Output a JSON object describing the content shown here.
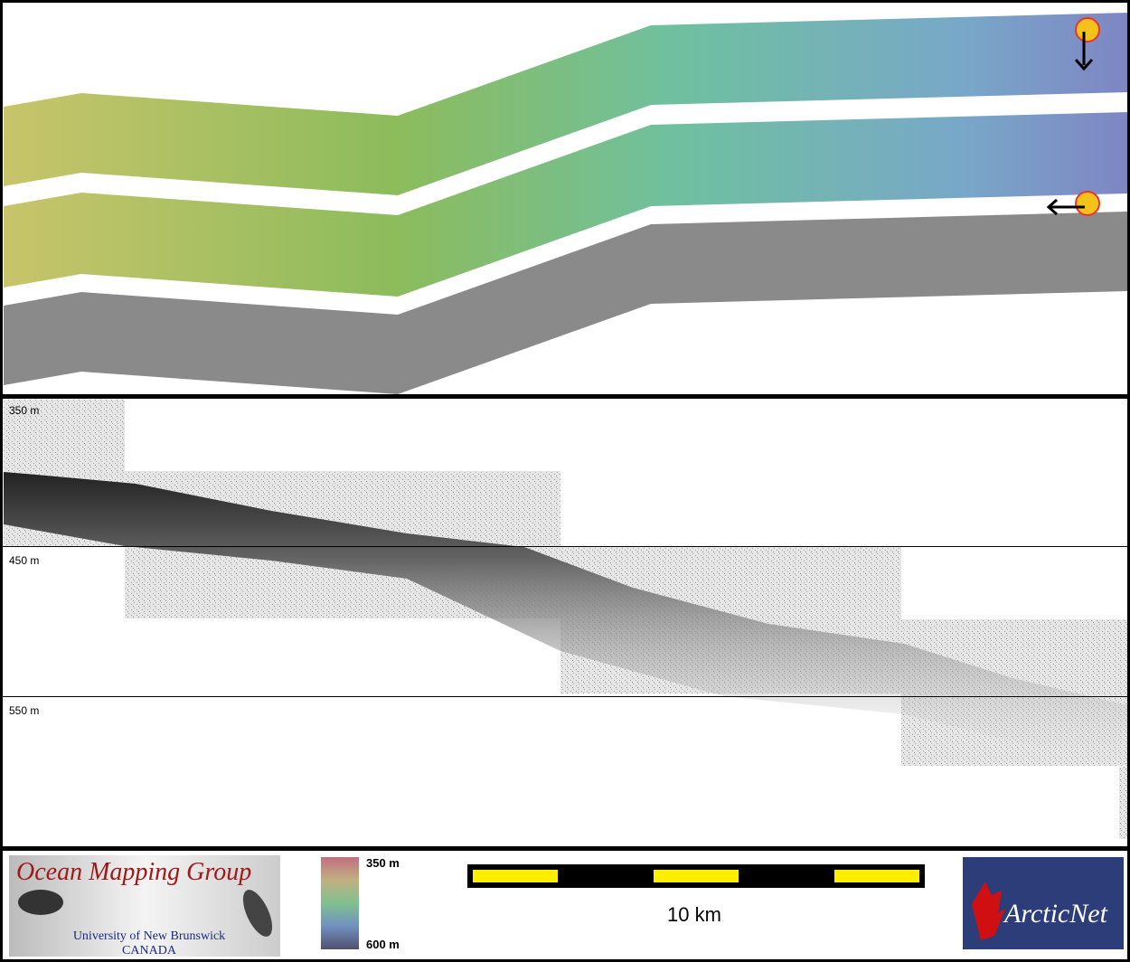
{
  "profile": {
    "depth_labels": [
      "350 m",
      "450 m",
      "550 m"
    ]
  },
  "footer": {
    "logo_omg": {
      "title": "Ocean Mapping Group",
      "line1": "University of New Brunswick",
      "line2": "CANADA"
    },
    "colorbar": {
      "top": "350 m",
      "bottom": "600 m"
    },
    "scale_bar": {
      "label": "10 km"
    },
    "logo_arcticnet": {
      "name": "ArcticNet"
    }
  }
}
